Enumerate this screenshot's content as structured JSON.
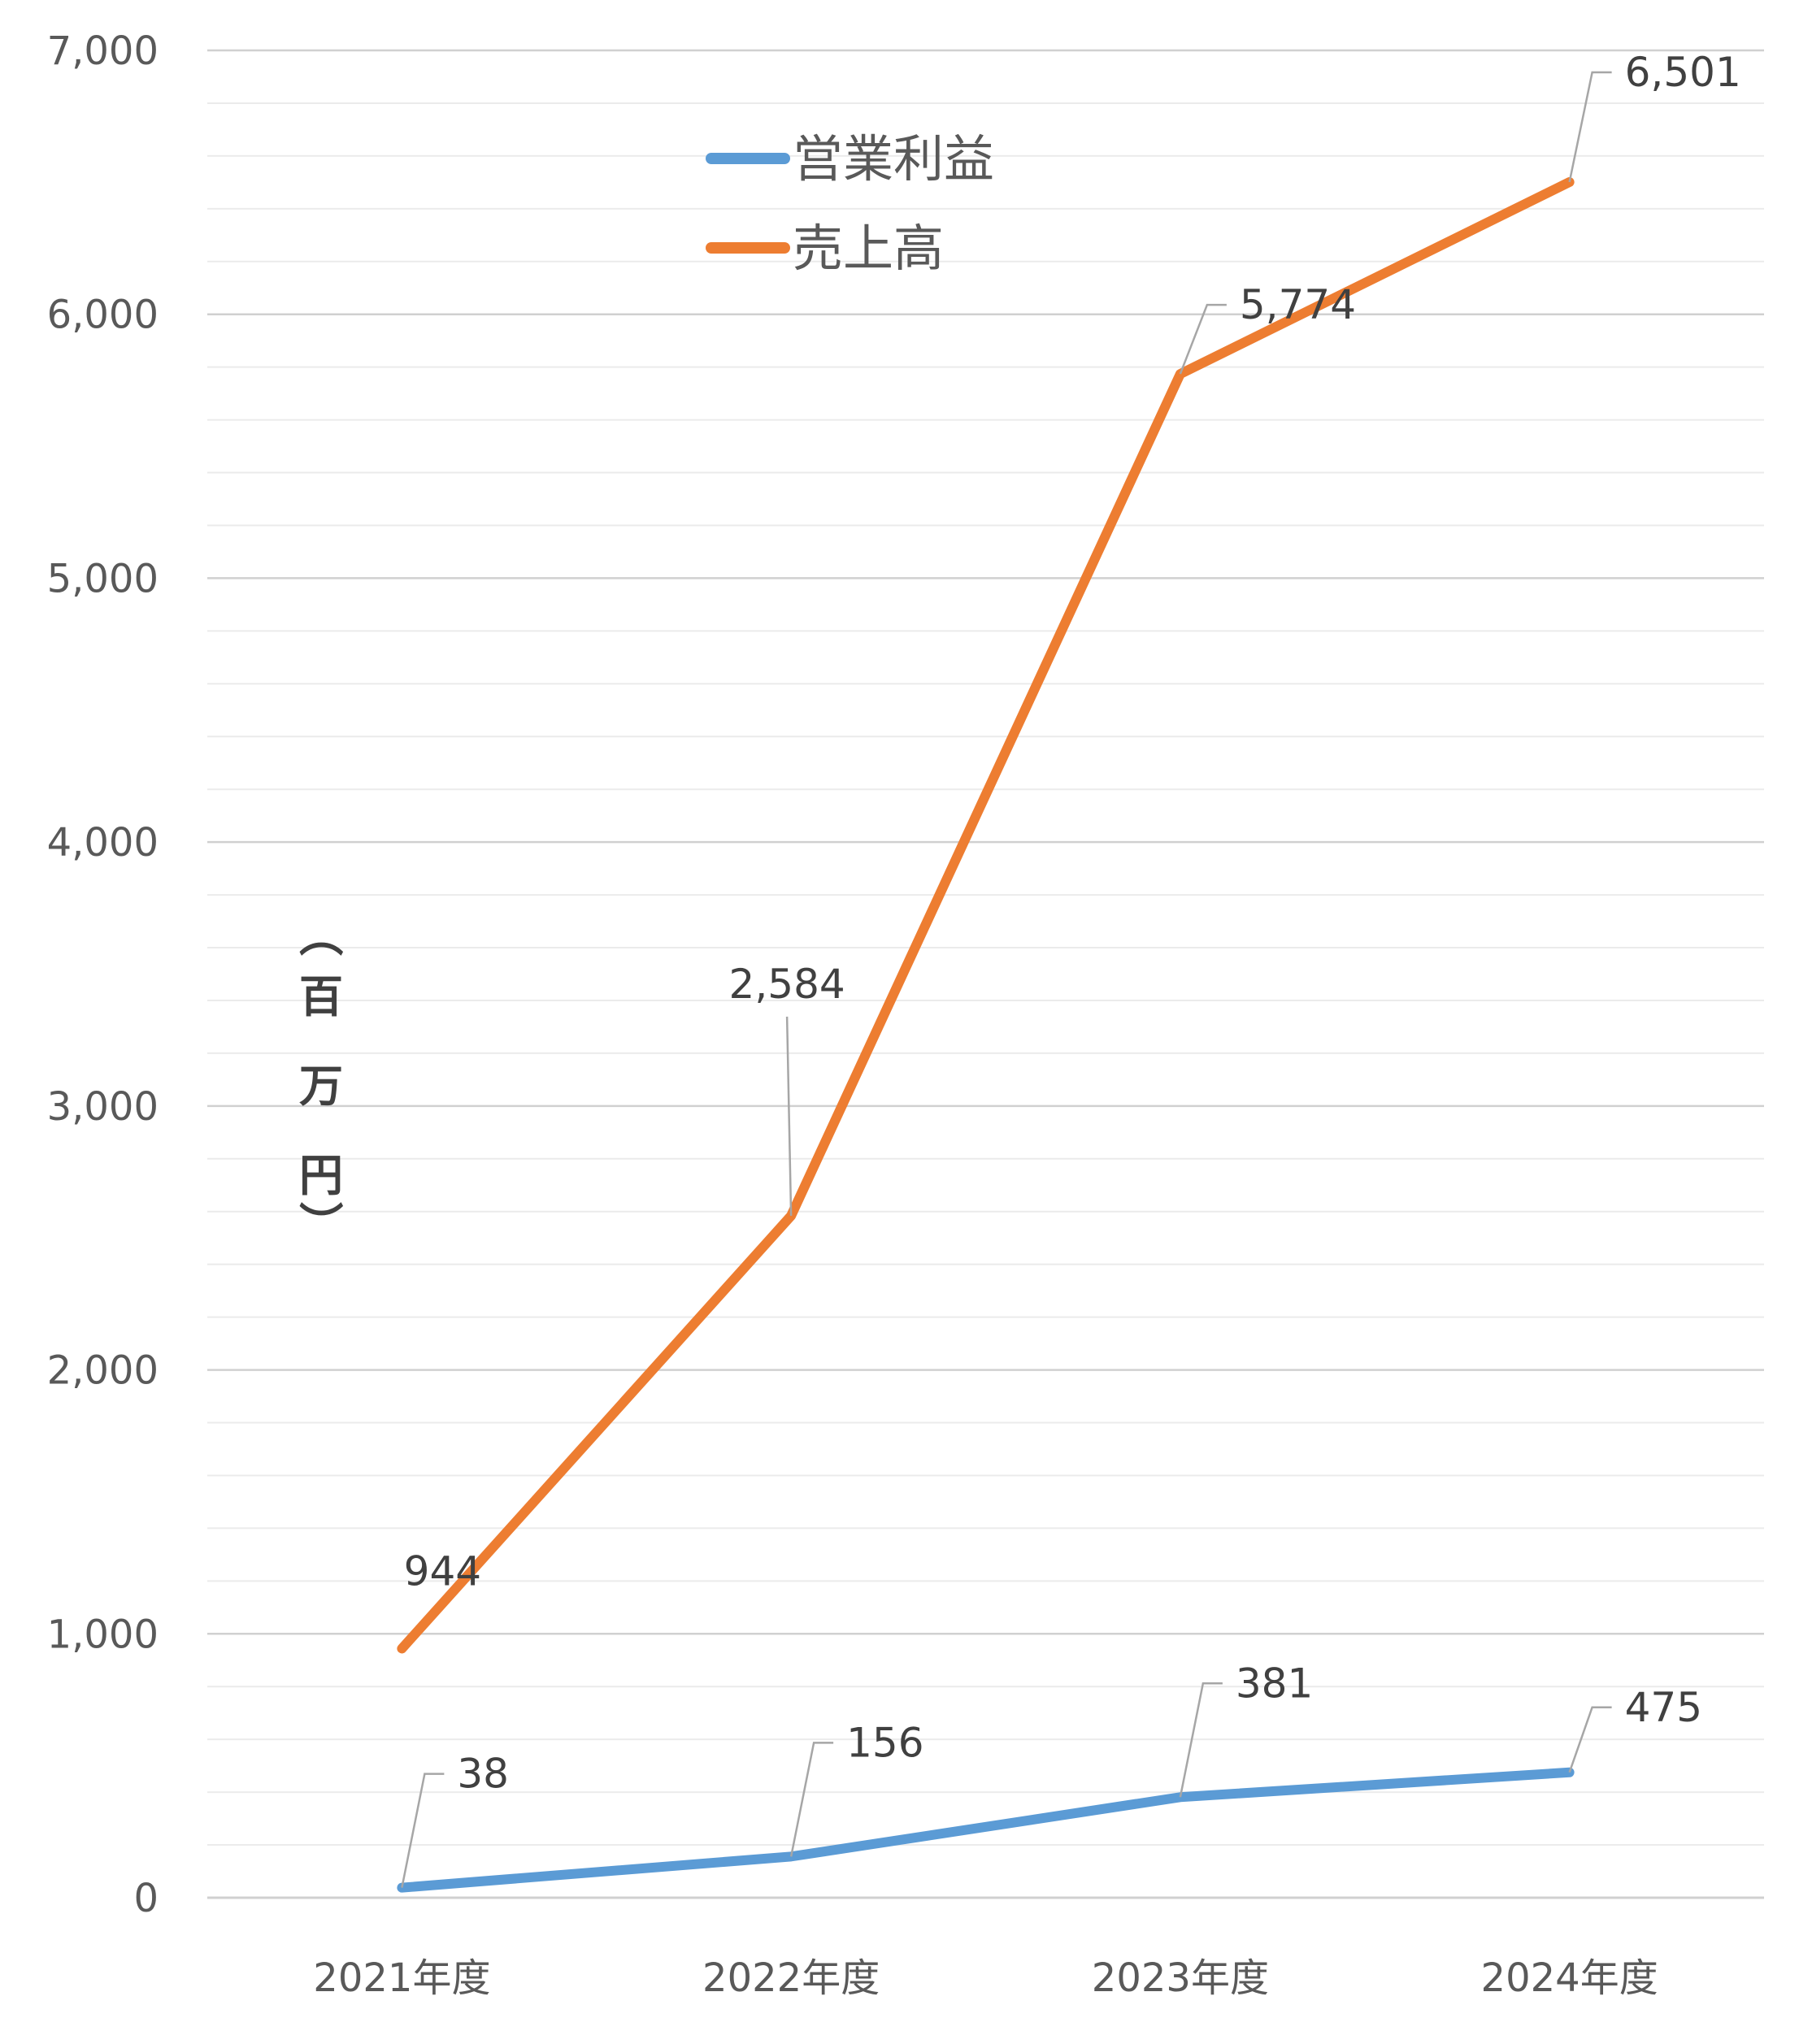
{
  "chart_data": {
    "type": "line",
    "categories": [
      "2021年度",
      "2022年度",
      "2023年度",
      "2024年度"
    ],
    "series": [
      {
        "name": "営業利益",
        "values": [
          38,
          156,
          381,
          475
        ],
        "labels": [
          "38",
          "156",
          "381",
          "475"
        ],
        "color": "#5B9BD5"
      },
      {
        "name": "売上高",
        "values": [
          944,
          2584,
          5774,
          6501
        ],
        "labels": [
          "944",
          "2,584",
          "5,774",
          "6,501"
        ],
        "color": "#ED7D31"
      }
    ],
    "yticks": [
      0,
      1000,
      2000,
      3000,
      4000,
      5000,
      6000,
      7000
    ],
    "ytick_labels": [
      "0",
      "1,000",
      "2,000",
      "3,000",
      "4,000",
      "5,000",
      "6,000",
      "7,000"
    ],
    "ylim": [
      0,
      7000
    ],
    "minor_gridline_step": 200,
    "ylabel": [
      "（",
      "百",
      "万",
      "円",
      "）"
    ],
    "xlabel": "",
    "title": "",
    "legend_position": "top-center",
    "grid": true,
    "gridline_color": "#D9D9D9",
    "leader_line_color": "#A6A6A6"
  }
}
